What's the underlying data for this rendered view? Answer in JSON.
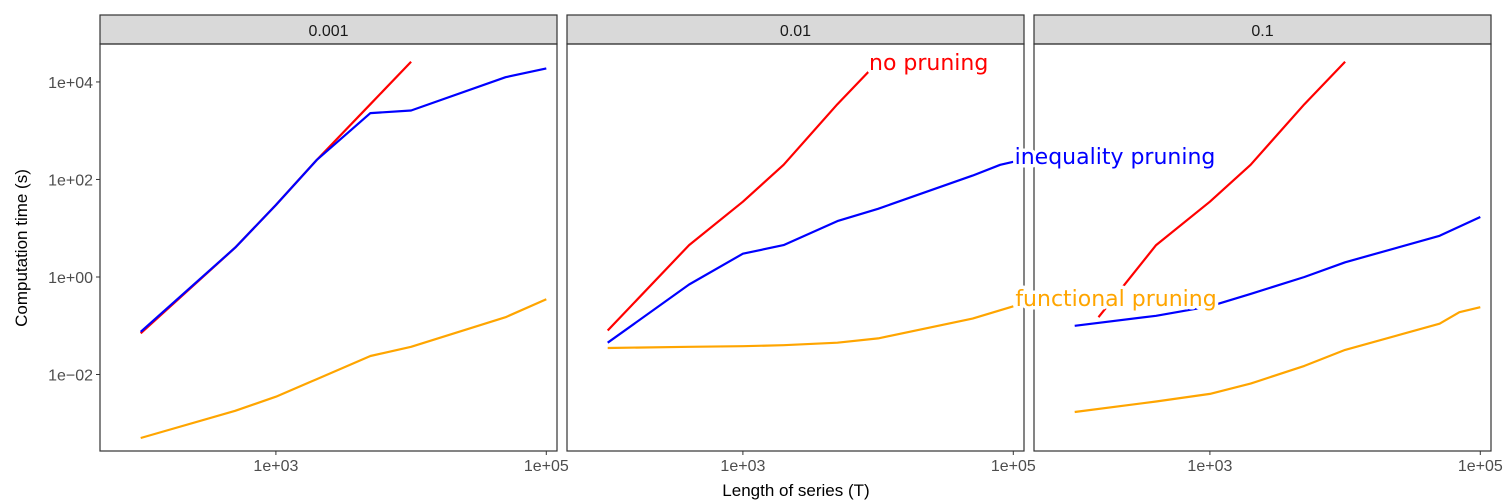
{
  "chart_data": {
    "type": "line",
    "xlabel": "Length of series (T)",
    "ylabel": "Computation time (s)",
    "x_scale": "log10",
    "y_scale": "log10",
    "xlim": [
      50,
      120000
    ],
    "ylim": [
      0.00027,
      60000
    ],
    "x_ticks": [
      {
        "value": 1000,
        "label": "1e+03"
      },
      {
        "value": 100000,
        "label": "1e+05"
      }
    ],
    "y_ticks": [
      {
        "value": 0.01,
        "label": "1e−02"
      },
      {
        "value": 1,
        "label": "1e+00"
      },
      {
        "value": 100,
        "label": "1e+02"
      },
      {
        "value": 10000,
        "label": "1e+04"
      }
    ],
    "grid": false,
    "legend": "none",
    "colors": {
      "no pruning": "#ff0000",
      "inequality pruning": "#0000ff",
      "functional pruning": "#ffa500"
    },
    "annotations": [
      {
        "text": "no pruning",
        "color": "#ff0000",
        "panel": "0.01"
      },
      {
        "text": "inequality pruning",
        "color": "#0000ff",
        "panel": "0.01"
      },
      {
        "text": "functional pruning",
        "color": "#ffa500",
        "panel": "0.01"
      }
    ],
    "panels": [
      {
        "title": "0.001",
        "series": [
          {
            "name": "no pruning",
            "x": [
              100,
              500,
              1000,
              2000,
              5000,
              10000
            ],
            "y": [
              0.07,
              4,
              30,
              250,
              3500,
              26000
            ]
          },
          {
            "name": "inequality pruning",
            "x": [
              100,
              500,
              1000,
              2000,
              5000,
              10000,
              50000,
              100000
            ],
            "y": [
              0.075,
              4,
              30,
              250,
              2300,
              2600,
              12500,
              19000
            ]
          },
          {
            "name": "functional pruning",
            "x": [
              100,
              500,
              1000,
              2000,
              5000,
              10000,
              50000,
              100000
            ],
            "y": [
              0.0005,
              0.0018,
              0.0035,
              0.008,
              0.024,
              0.037,
              0.15,
              0.35
            ]
          }
        ]
      },
      {
        "title": "0.01",
        "series": [
          {
            "name": "no pruning",
            "x": [
              100,
              400,
              1000,
              2000,
              5000,
              10000
            ],
            "y": [
              0.08,
              4.5,
              35,
              200,
              3500,
              26000
            ]
          },
          {
            "name": "inequality pruning",
            "x": [
              100,
              400,
              1000,
              2000,
              5000,
              10000,
              50000,
              80000,
              100000
            ],
            "y": [
              0.045,
              0.7,
              3,
              4.5,
              14,
              25,
              120,
              200,
              230
            ]
          },
          {
            "name": "functional pruning",
            "x": [
              100,
              400,
              1000,
              2000,
              5000,
              10000,
              50000,
              100000
            ],
            "y": [
              0.035,
              0.037,
              0.038,
              0.04,
              0.045,
              0.055,
              0.14,
              0.25
            ]
          }
        ]
      },
      {
        "title": "0.1",
        "series": [
          {
            "name": "no pruning",
            "x": [
              150,
              400,
              1000,
              2000,
              5000,
              10000
            ],
            "y": [
              0.15,
              4.5,
              35,
              200,
              3500,
              26000
            ]
          },
          {
            "name": "inequality pruning",
            "x": [
              100,
              400,
              1000,
              2000,
              5000,
              10000,
              50000,
              100000
            ],
            "y": [
              0.1,
              0.16,
              0.25,
              0.45,
              1,
              2,
              7,
              17
            ]
          },
          {
            "name": "functional pruning",
            "x": [
              100,
              400,
              1000,
              2000,
              5000,
              10000,
              50000,
              70000,
              100000
            ],
            "y": [
              0.0017,
              0.0028,
              0.004,
              0.0065,
              0.015,
              0.032,
              0.11,
              0.19,
              0.24
            ]
          }
        ]
      }
    ]
  }
}
